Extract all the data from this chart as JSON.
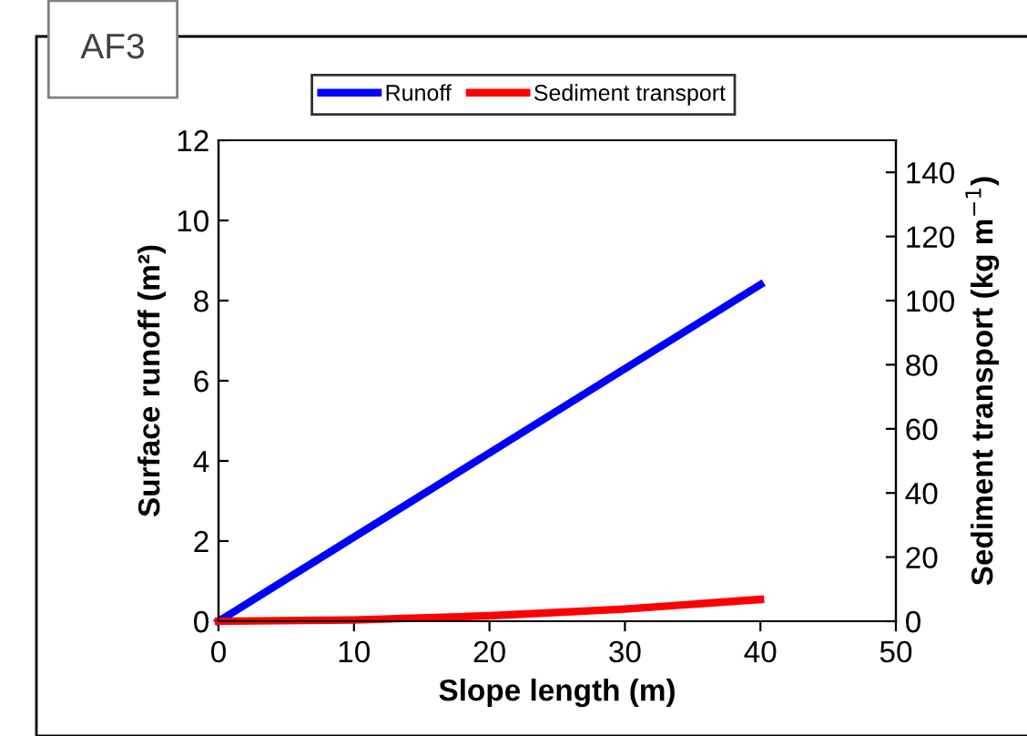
{
  "chart_data": {
    "type": "line",
    "xlabel": "Slope length (m)",
    "ylabel": "Surface runoff (m²)",
    "y2label": "Sediment transport (kg m$^{−1}$)",
    "annotations": [
      "AF3"
    ],
    "series": [
      {
        "name": "Runoff",
        "color": "#0000ff",
        "x": [
          0,
          10,
          20,
          30,
          40
        ],
        "values": [
          0,
          2.1,
          4.2,
          6.3,
          8.4
        ]
      },
      {
        "name": "Sediment transport",
        "color": "#ff0000",
        "axis": "y2",
        "x": [
          0,
          10,
          20,
          30,
          40
        ],
        "values": [
          0,
          0.4,
          1.7,
          3.8,
          6.8
        ]
      }
    ],
    "xlim": [
      0,
      50
    ],
    "xticks": [
      0,
      10,
      20,
      30,
      40,
      50
    ],
    "ylim": [
      0,
      12
    ],
    "yticks": [
      0,
      2,
      4,
      6,
      8,
      10,
      12
    ],
    "y2lim": [
      0,
      150
    ],
    "y2ticks": [
      0,
      20,
      40,
      60,
      80,
      100,
      120,
      140
    ],
    "legend": "top",
    "grid": false
  }
}
